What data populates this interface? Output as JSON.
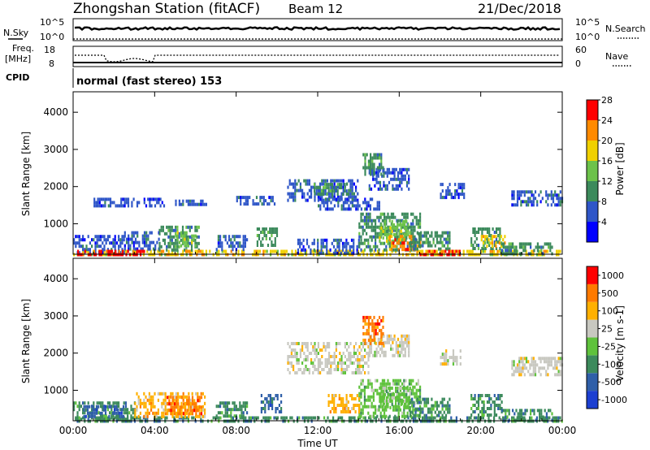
{
  "header": {
    "station": "Zhongshan Station (fitACF)",
    "beam": "Beam 12",
    "date": "21/Dec/2018"
  },
  "summary": {
    "nsky_label": "N.Sky",
    "nsearch_label": "N.Search",
    "nsky_ticks": [
      "10^5",
      "10^0"
    ],
    "nsearch_ticks": [
      "10^5",
      "10^0"
    ],
    "freq_label_1": "Freq.",
    "freq_label_2": "[MHz]",
    "freq_ticks": [
      "18",
      "8"
    ],
    "nave_label": "Nave",
    "nave_ticks": [
      "60",
      "0"
    ],
    "cpid_label": "CPID",
    "cpid_text": "normal (fast stereo) 153"
  },
  "axes": {
    "ylabel": "Slant Range [km]",
    "xlabel": "Time UT",
    "yticks": [
      1000,
      2000,
      3000,
      4000
    ],
    "ylim": [
      180,
      4550
    ],
    "xticks_hours": [
      0,
      4,
      8,
      12,
      16,
      20,
      24
    ],
    "xticklabels": [
      "00:00",
      "04:00",
      "08:00",
      "12:00",
      "16:00",
      "20:00",
      "00:00"
    ],
    "xlim_hours": [
      0,
      24
    ]
  },
  "chart_data": [
    {
      "type": "heatmap",
      "panel": "power",
      "colorbar_label": "Power [dB]",
      "colorbar_ticks": [
        "4",
        "8",
        "12",
        "16",
        "20",
        "24",
        "28"
      ],
      "colorbar_colors": [
        "#0000ff",
        "#2f56c8",
        "#3c8a5c",
        "#6cc24a",
        "#f0d000",
        "#ff8a00",
        "#ff0000"
      ],
      "regions": [
        {
          "t0": 0.0,
          "t1": 24.0,
          "r0": 200,
          "r1": 300,
          "level": 4
        },
        {
          "t0": 0.0,
          "t1": 2.5,
          "r0": 200,
          "r1": 700,
          "level": 1
        },
        {
          "t0": 2.5,
          "t1": 4.2,
          "r0": 300,
          "r1": 800,
          "level": 1
        },
        {
          "t0": 4.2,
          "t1": 6.2,
          "r0": 300,
          "r1": 950,
          "level": 2
        },
        {
          "t0": 5.0,
          "t1": 6.0,
          "r0": 400,
          "r1": 800,
          "level": 3
        },
        {
          "t0": 0.2,
          "t1": 3.5,
          "r0": 200,
          "r1": 300,
          "level": 6
        },
        {
          "t0": 5.5,
          "t1": 6.5,
          "r0": 200,
          "r1": 300,
          "level": 5
        },
        {
          "t0": 1.0,
          "t1": 4.5,
          "r0": 1500,
          "r1": 1700,
          "level": 1
        },
        {
          "t0": 5.0,
          "t1": 6.5,
          "r0": 1500,
          "r1": 1650,
          "level": 1
        },
        {
          "t0": 7.0,
          "t1": 8.5,
          "r0": 300,
          "r1": 700,
          "level": 1
        },
        {
          "t0": 8.0,
          "t1": 10.0,
          "r0": 1500,
          "r1": 1750,
          "level": 1
        },
        {
          "t0": 9.0,
          "t1": 10.0,
          "r0": 400,
          "r1": 900,
          "level": 2
        },
        {
          "t0": 10.5,
          "t1": 14.0,
          "r0": 1600,
          "r1": 2200,
          "level": 1
        },
        {
          "t0": 11.8,
          "t1": 13.5,
          "r0": 1800,
          "r1": 2100,
          "level": 2
        },
        {
          "t0": 12.0,
          "t1": 15.0,
          "r0": 1400,
          "r1": 1700,
          "level": 1
        },
        {
          "t0": 14.5,
          "t1": 16.5,
          "r0": 1900,
          "r1": 2500,
          "level": 1
        },
        {
          "t0": 14.2,
          "t1": 15.2,
          "r0": 2300,
          "r1": 2900,
          "level": 2
        },
        {
          "t0": 11.0,
          "t1": 14.0,
          "r0": 200,
          "r1": 600,
          "level": 1
        },
        {
          "t0": 14.0,
          "t1": 17.0,
          "r0": 300,
          "r1": 1300,
          "level": 2
        },
        {
          "t0": 15.0,
          "t1": 16.5,
          "r0": 500,
          "r1": 1100,
          "level": 3
        },
        {
          "t0": 15.5,
          "t1": 17.0,
          "r0": 300,
          "r1": 700,
          "level": 5
        },
        {
          "t0": 16.5,
          "t1": 18.5,
          "r0": 300,
          "r1": 800,
          "level": 2
        },
        {
          "t0": 17.0,
          "t1": 19.0,
          "r0": 200,
          "r1": 300,
          "level": 6
        },
        {
          "t0": 18.0,
          "t1": 19.2,
          "r0": 1700,
          "r1": 2100,
          "level": 1
        },
        {
          "t0": 19.5,
          "t1": 21.0,
          "r0": 300,
          "r1": 900,
          "level": 2
        },
        {
          "t0": 20.0,
          "t1": 21.2,
          "r0": 400,
          "r1": 700,
          "level": 4
        },
        {
          "t0": 21.5,
          "t1": 24.0,
          "r0": 1500,
          "r1": 1900,
          "level": 1
        },
        {
          "t0": 21.0,
          "t1": 23.5,
          "r0": 200,
          "r1": 500,
          "level": 2
        }
      ]
    },
    {
      "type": "heatmap",
      "panel": "velocity",
      "colorbar_label": "Velocity [m s-1]",
      "colorbar_ticks": [
        "1000",
        "500",
        "100",
        "25",
        "-25",
        "-100",
        "-500",
        "-1000"
      ],
      "colorbar_colors": [
        "#1c3fd1",
        "#2f5fa8",
        "#3c8a5c",
        "#5fc23c",
        "#c8c8c0",
        "#ffb000",
        "#ff7a00",
        "#ff0000"
      ],
      "regions": [
        {
          "t0": 0.0,
          "t1": 24.0,
          "r0": 200,
          "r1": 300,
          "level": 2
        },
        {
          "t0": 0.0,
          "t1": 3.0,
          "r0": 200,
          "r1": 700,
          "level": 2
        },
        {
          "t0": 3.0,
          "t1": 6.5,
          "r0": 300,
          "r1": 950,
          "level": 5
        },
        {
          "t0": 4.5,
          "t1": 6.3,
          "r0": 400,
          "r1": 850,
          "level": 6
        },
        {
          "t0": 0.5,
          "t1": 2.5,
          "r0": 300,
          "r1": 600,
          "level": 1
        },
        {
          "t0": 7.0,
          "t1": 8.5,
          "r0": 300,
          "r1": 700,
          "level": 2
        },
        {
          "t0": 9.2,
          "t1": 10.2,
          "r0": 400,
          "r1": 900,
          "level": 1
        },
        {
          "t0": 10.5,
          "t1": 14.5,
          "r0": 1500,
          "r1": 2300,
          "level": 4
        },
        {
          "t0": 14.5,
          "t1": 16.5,
          "r0": 1900,
          "r1": 2500,
          "level": 4
        },
        {
          "t0": 14.2,
          "t1": 15.2,
          "r0": 2300,
          "r1": 3000,
          "level": 6
        },
        {
          "t0": 14.0,
          "t1": 17.0,
          "r0": 300,
          "r1": 1300,
          "level": 3
        },
        {
          "t0": 15.0,
          "t1": 16.5,
          "r0": 500,
          "r1": 1100,
          "level": 3
        },
        {
          "t0": 12.5,
          "t1": 14.0,
          "r0": 400,
          "r1": 900,
          "level": 5
        },
        {
          "t0": 16.5,
          "t1": 18.5,
          "r0": 300,
          "r1": 800,
          "level": 2
        },
        {
          "t0": 18.0,
          "t1": 19.0,
          "r0": 1700,
          "r1": 2100,
          "level": 4
        },
        {
          "t0": 19.5,
          "t1": 21.0,
          "r0": 300,
          "r1": 900,
          "level": 2
        },
        {
          "t0": 21.5,
          "t1": 24.0,
          "r0": 1450,
          "r1": 1900,
          "level": 4
        },
        {
          "t0": 21.0,
          "t1": 23.5,
          "r0": 200,
          "r1": 500,
          "level": 2
        }
      ]
    }
  ]
}
